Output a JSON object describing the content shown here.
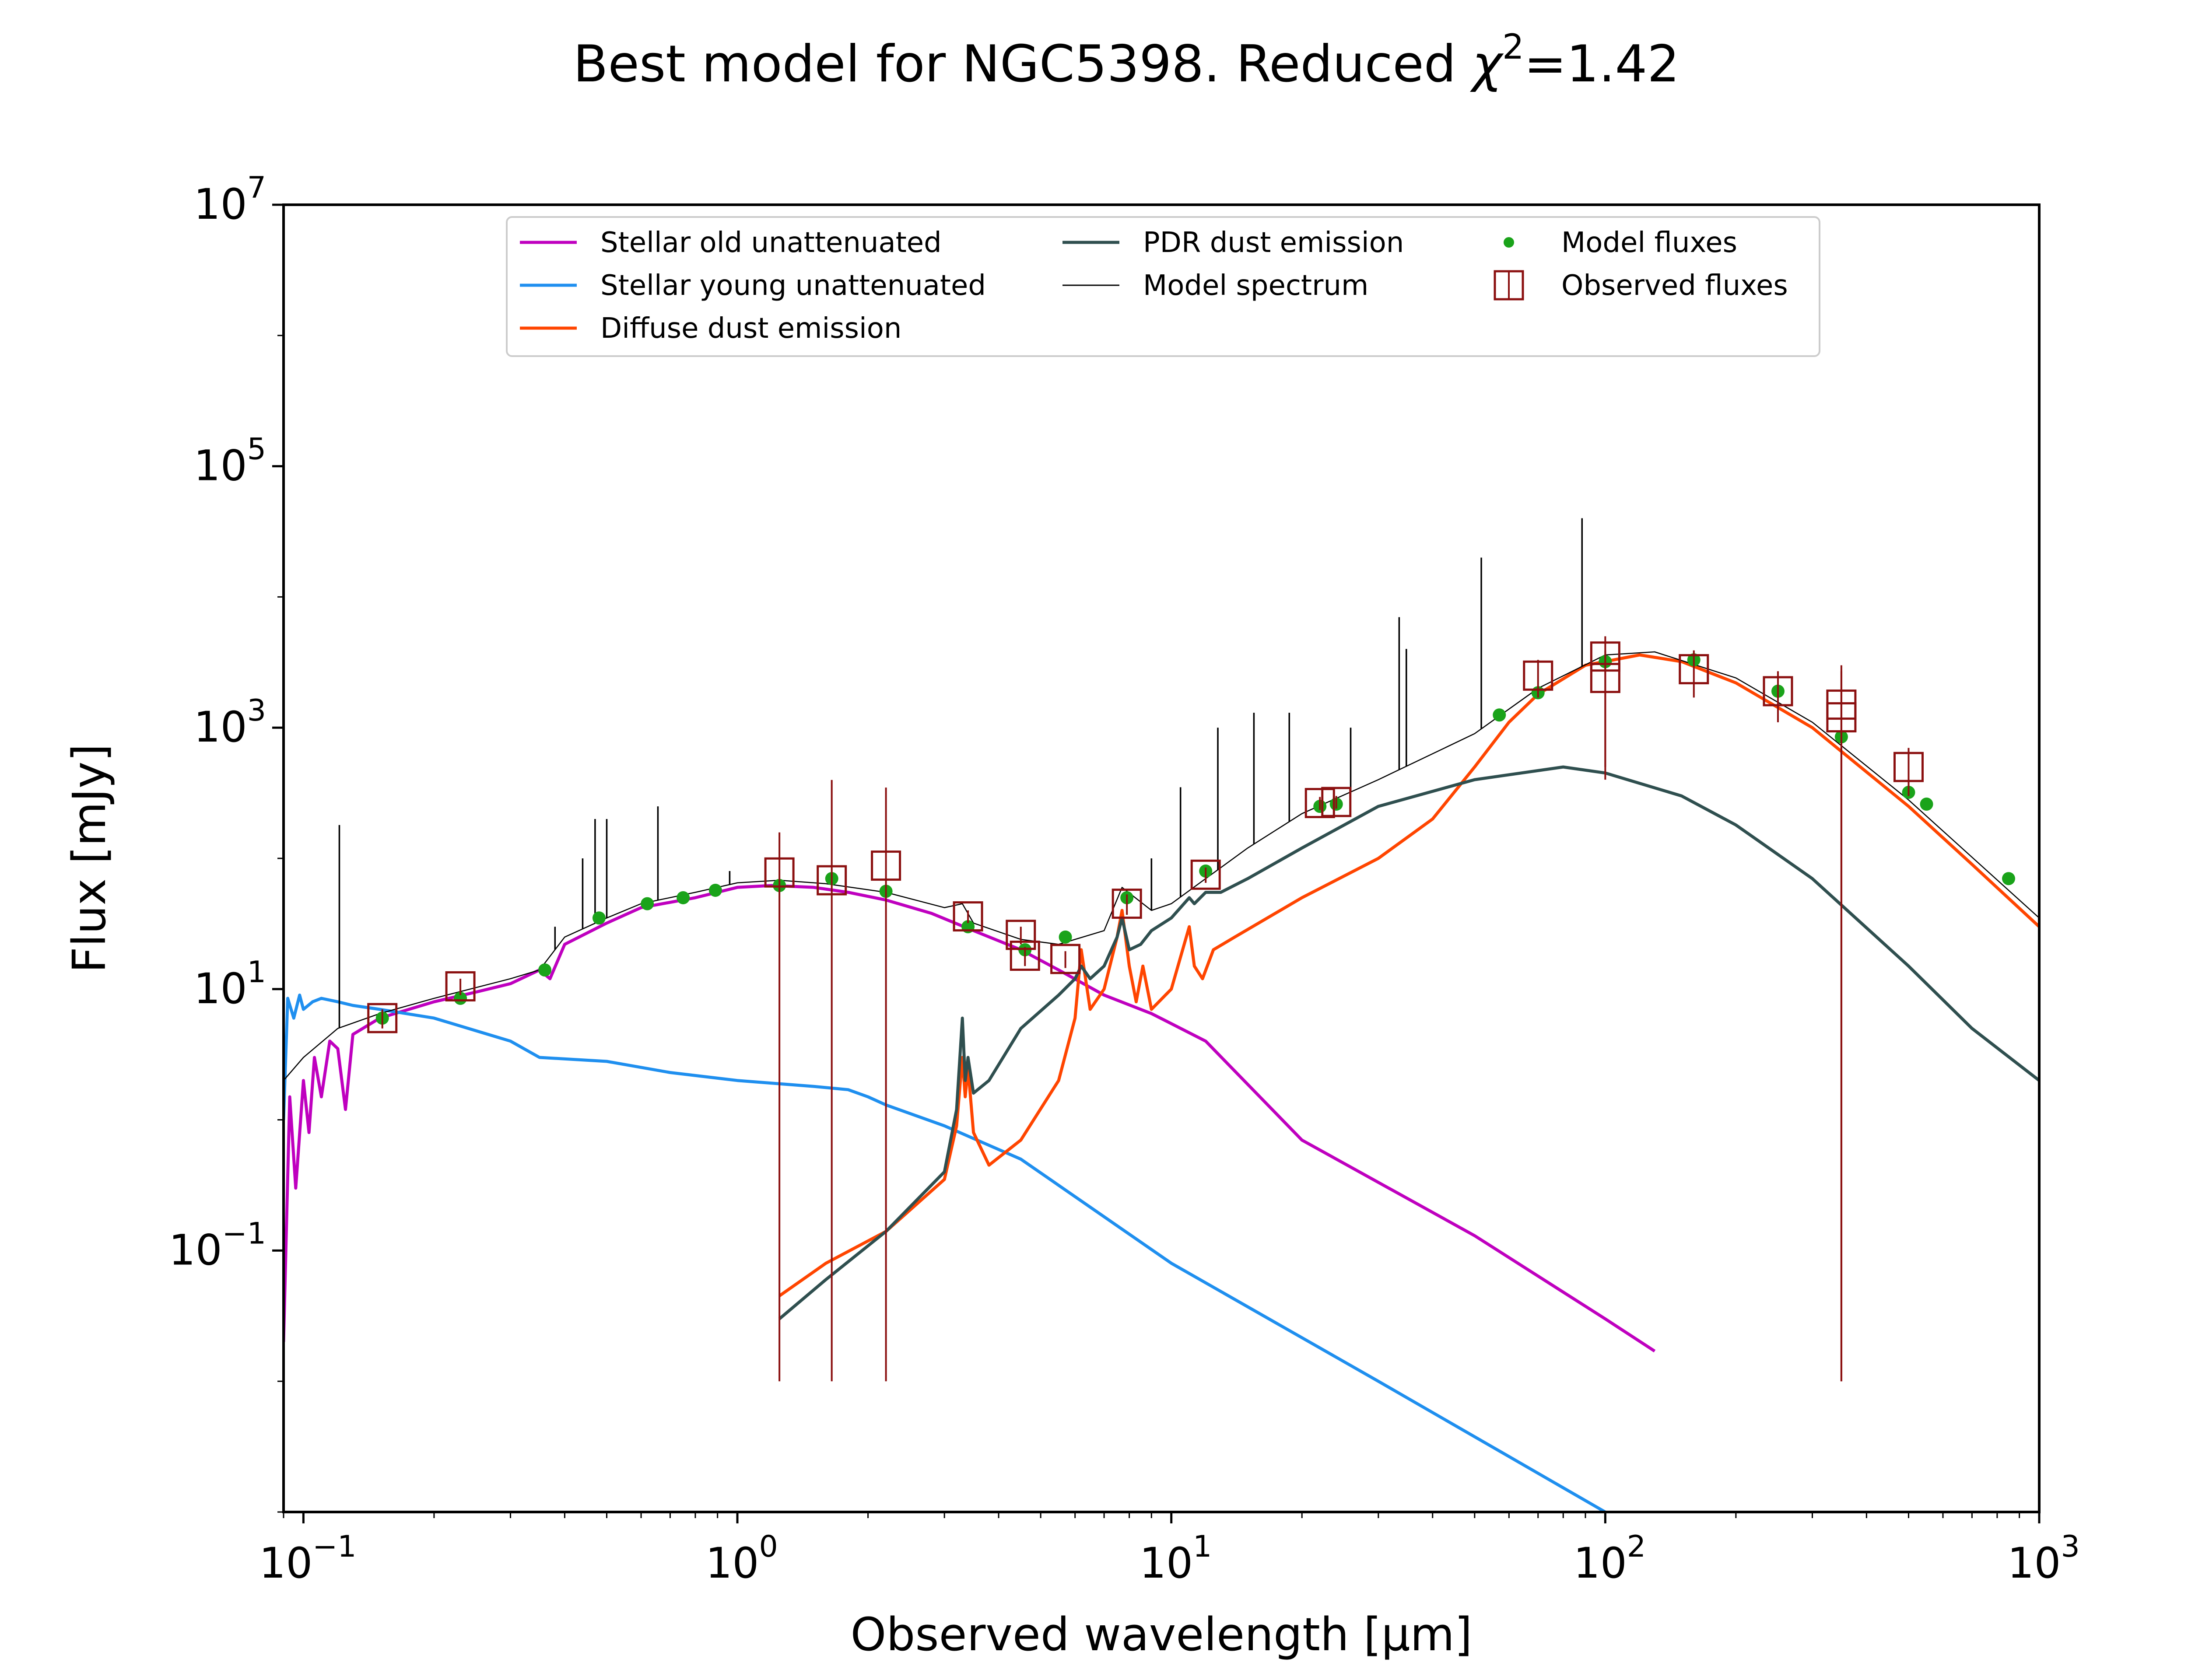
{
  "chart_data": {
    "type": "line",
    "title": "Best model for NGC5398. Reduced χ²=1.42",
    "title_parts": {
      "prefix": "Best model for NGC5398. Reduced ",
      "chi": "χ",
      "sup": "2",
      "suffix": "=1.42"
    },
    "xlabel": "Observed wavelength [μm]",
    "ylabel": "Flux [mJy]",
    "xscale": "log",
    "yscale": "log",
    "xlim": [
      0.09,
      1000
    ],
    "ylim": [
      0.001,
      10000000
    ],
    "x_ticks": [
      {
        "value": 0.1,
        "base": "10",
        "exp": "−1"
      },
      {
        "value": 1,
        "base": "10",
        "exp": "0"
      },
      {
        "value": 10,
        "base": "10",
        "exp": "1"
      },
      {
        "value": 100,
        "base": "10",
        "exp": "2"
      },
      {
        "value": 1000,
        "base": "10",
        "exp": "3"
      }
    ],
    "y_ticks": [
      {
        "value": 0.1,
        "base": "10",
        "exp": "−1"
      },
      {
        "value": 10,
        "base": "10",
        "exp": "1"
      },
      {
        "value": 1000,
        "base": "10",
        "exp": "3"
      },
      {
        "value": 100000,
        "base": "10",
        "exp": "5"
      },
      {
        "value": 10000000,
        "base": "10",
        "exp": "7"
      }
    ],
    "legend_placement": "top-center",
    "grid": false,
    "series": [
      {
        "name": "Stellar old unattenuated",
        "kind": "line",
        "color": "#bf00bf",
        "width": 7,
        "x": [
          0.09,
          0.093,
          0.096,
          0.1,
          0.103,
          0.106,
          0.11,
          0.115,
          0.12,
          0.125,
          0.13,
          0.15,
          0.2,
          0.25,
          0.3,
          0.35,
          0.37,
          0.4,
          0.5,
          0.6,
          0.8,
          1.0,
          1.2,
          1.5,
          1.8,
          2.2,
          2.8,
          3.5,
          4.5,
          5.5,
          7,
          9,
          12,
          20,
          50,
          100,
          130
        ],
        "y": [
          0.02,
          1.5,
          0.3,
          2.0,
          0.8,
          3.0,
          1.5,
          4.0,
          3.5,
          1.2,
          4.5,
          6.0,
          8.0,
          9.5,
          11,
          14,
          12,
          22,
          32,
          42,
          50,
          60,
          62,
          60,
          55,
          48,
          38,
          28,
          20,
          14,
          9,
          6.5,
          4.0,
          0.7,
          0.13,
          0.03,
          0.017
        ]
      },
      {
        "name": "Stellar young unattenuated",
        "kind": "line",
        "color": "#1f8fef",
        "width": 7,
        "x": [
          0.09,
          0.092,
          0.095,
          0.098,
          0.1,
          0.105,
          0.11,
          0.12,
          0.13,
          0.15,
          0.2,
          0.3,
          0.35,
          0.5,
          0.7,
          1.0,
          1.5,
          1.8,
          2.0,
          2.2,
          3.0,
          4.5,
          10,
          30,
          100
        ],
        "y": [
          1.0,
          8.5,
          6.0,
          9.0,
          7.0,
          8.0,
          8.5,
          8.0,
          7.5,
          7.0,
          6.0,
          4.0,
          3.0,
          2.8,
          2.3,
          2.0,
          1.8,
          1.7,
          1.5,
          1.3,
          0.9,
          0.5,
          0.08,
          0.01,
          0.001
        ]
      },
      {
        "name": "Diffuse dust emission",
        "kind": "line",
        "color": "#ff4500",
        "width": 7,
        "x": [
          1.25,
          1.6,
          2.2,
          3.0,
          3.2,
          3.3,
          3.35,
          3.4,
          3.5,
          3.8,
          4.5,
          5.5,
          6.0,
          6.2,
          6.5,
          7.0,
          7.5,
          7.7,
          8.0,
          8.3,
          8.6,
          9.0,
          10,
          11.0,
          11.3,
          11.8,
          12.5,
          14,
          20,
          30,
          40,
          50,
          60,
          70,
          90,
          120,
          150,
          200,
          300,
          500,
          700,
          1000
        ],
        "y": [
          0.045,
          0.08,
          0.14,
          0.35,
          0.9,
          3.0,
          1.5,
          2.5,
          0.8,
          0.45,
          0.7,
          2.0,
          6.0,
          20,
          7,
          10,
          25,
          40,
          15,
          8,
          15,
          7,
          10,
          30,
          15,
          12,
          20,
          25,
          50,
          100,
          200,
          500,
          1100,
          1800,
          3000,
          3600,
          3200,
          2200,
          1000,
          250,
          90,
          30
        ]
      },
      {
        "name": "PDR dust emission",
        "kind": "line",
        "color": "#2f4f4f",
        "width": 7,
        "x": [
          1.25,
          1.6,
          2.2,
          3.0,
          3.2,
          3.3,
          3.35,
          3.4,
          3.5,
          3.8,
          4.5,
          5.5,
          6.0,
          6.2,
          6.5,
          7.0,
          7.5,
          7.7,
          8.0,
          8.5,
          9.0,
          10,
          11.0,
          11.3,
          12,
          13,
          15,
          20,
          30,
          50,
          80,
          100,
          150,
          200,
          300,
          500,
          700,
          1000
        ],
        "y": [
          0.03,
          0.06,
          0.14,
          0.4,
          1.2,
          6.0,
          2.0,
          3.0,
          1.6,
          2.0,
          5.0,
          9.0,
          12,
          15,
          12,
          15,
          25,
          35,
          20,
          22,
          28,
          35,
          50,
          45,
          55,
          55,
          70,
          120,
          250,
          400,
          500,
          450,
          300,
          180,
          70,
          15,
          5,
          2
        ]
      },
      {
        "name": "Model spectrum",
        "kind": "line",
        "color": "#000000",
        "width": 2.5,
        "x": [
          0.09,
          0.1,
          0.12,
          0.15,
          0.2,
          0.3,
          0.35,
          0.4,
          0.5,
          0.6,
          0.8,
          1.0,
          1.25,
          1.6,
          2.2,
          3.0,
          3.3,
          3.5,
          4.5,
          5.5,
          7,
          7.7,
          9,
          10,
          12,
          15,
          20,
          30,
          50,
          70,
          100,
          130,
          200,
          300,
          500,
          1000
        ],
        "y": [
          2.0,
          3.0,
          5.0,
          6.5,
          8.5,
          12,
          14,
          25,
          35,
          45,
          55,
          65,
          68,
          64,
          55,
          42,
          45,
          32,
          24,
          22,
          28,
          60,
          40,
          45,
          70,
          120,
          220,
          400,
          900,
          2000,
          3600,
          3800,
          2400,
          1100,
          280,
          35
        ],
        "spikes": [
          {
            "x": 0.121,
            "y": 180
          },
          {
            "x": 0.38,
            "y": 30
          },
          {
            "x": 0.44,
            "y": 100
          },
          {
            "x": 0.47,
            "y": 200
          },
          {
            "x": 0.5,
            "y": 200
          },
          {
            "x": 0.656,
            "y": 250
          },
          {
            "x": 0.96,
            "y": 80
          },
          {
            "x": 9.0,
            "y": 100
          },
          {
            "x": 10.5,
            "y": 350
          },
          {
            "x": 12.8,
            "y": 1000
          },
          {
            "x": 15.5,
            "y": 1300
          },
          {
            "x": 18.7,
            "y": 1300
          },
          {
            "x": 25.9,
            "y": 1000
          },
          {
            "x": 33.5,
            "y": 7000
          },
          {
            "x": 34.8,
            "y": 4000
          },
          {
            "x": 51.8,
            "y": 20000
          },
          {
            "x": 88.4,
            "y": 40000
          },
          {
            "x": 157.7,
            "y": 3000
          }
        ]
      },
      {
        "name": "Model fluxes",
        "kind": "scatter",
        "color": "#1aa31a",
        "x": [
          0.152,
          0.23,
          0.36,
          0.48,
          0.62,
          0.75,
          0.89,
          1.25,
          1.65,
          2.2,
          3.4,
          4.6,
          5.7,
          7.9,
          12,
          22,
          24,
          57,
          70,
          100,
          160,
          250,
          350,
          500,
          550,
          850
        ],
        "y": [
          6.0,
          8.5,
          14,
          35,
          45,
          50,
          57,
          62,
          70,
          56,
          30,
          20,
          25,
          50,
          80,
          250,
          260,
          1250,
          1850,
          3200,
          3300,
          1900,
          850,
          320,
          260,
          70
        ]
      },
      {
        "name": "Observed fluxes",
        "kind": "errorbar",
        "color": "#8b1010",
        "x": [
          0.152,
          0.23,
          1.25,
          1.65,
          2.2,
          3.4,
          4.5,
          4.6,
          5.7,
          7.9,
          12,
          22,
          24,
          70,
          100,
          100,
          160,
          250,
          350,
          350,
          500
        ],
        "y": [
          6.0,
          10.5,
          78,
          68,
          88,
          36,
          26,
          18,
          17,
          45,
          75,
          265,
          270,
          2500,
          3500,
          2400,
          2800,
          1900,
          1500,
          1200,
          500
        ],
        "yerr_low": [
          1.0,
          1.5,
          77.99,
          67.99,
          87.99,
          4.0,
          4.0,
          3.0,
          2.5,
          8.0,
          10,
          30,
          30,
          800,
          3000,
          2000,
          1100,
          800,
          1499.99,
          1199.99,
          200
        ],
        "yerr_high": [
          1.0,
          1.5,
          80,
          330,
          260,
          4.0,
          4.0,
          3.0,
          2.5,
          8.0,
          10,
          30,
          30,
          800,
          1500,
          1500,
          1100,
          800,
          1500,
          1500,
          200
        ]
      }
    ]
  }
}
